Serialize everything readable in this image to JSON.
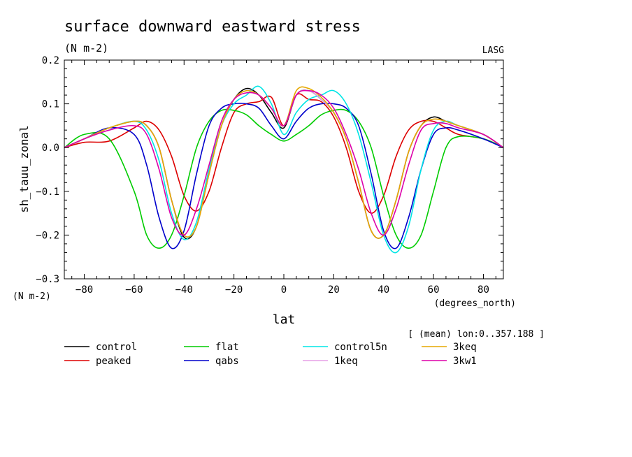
{
  "chart_data": {
    "type": "line",
    "title": "surface downward eastward stress",
    "units": "(N m-2)",
    "source": "LASG",
    "ylabel": "sh_tauu_zonal",
    "yunits": "(N m-2)",
    "xlabel": "lat",
    "xunits": "(degrees_north)",
    "note": "[ (mean) lon:0..357.188 ]",
    "xlim": [
      -88,
      88
    ],
    "ylim": [
      -0.3,
      0.2
    ],
    "x_ticks": [
      -80,
      -60,
      -40,
      -20,
      0,
      20,
      40,
      60,
      80
    ],
    "x_tick_labels": [
      "−80",
      "−60",
      "−40",
      "−20",
      "0",
      "20",
      "40",
      "60",
      "80"
    ],
    "y_ticks": [
      -0.3,
      -0.2,
      -0.1,
      0.0,
      0.1,
      0.2
    ],
    "y_tick_labels": [
      "−0.3",
      "−0.2",
      "−0.1",
      "0.0",
      "0.1",
      "0.2"
    ],
    "grid": false,
    "legend_position": "bottom",
    "x": [
      -88,
      -80,
      -70,
      -60,
      -55,
      -50,
      -45,
      -40,
      -35,
      -30,
      -25,
      -20,
      -15,
      -10,
      -5,
      0,
      5,
      10,
      15,
      20,
      25,
      30,
      35,
      40,
      45,
      50,
      55,
      60,
      65,
      70,
      80,
      88
    ],
    "series": [
      {
        "name": "control",
        "color": "#000000",
        "values": [
          0.0,
          0.02,
          0.045,
          0.06,
          0.05,
          0.0,
          -0.12,
          -0.205,
          -0.18,
          -0.06,
          0.05,
          0.11,
          0.135,
          0.12,
          0.08,
          0.045,
          0.12,
          0.13,
          0.11,
          0.08,
          0.02,
          -0.08,
          -0.19,
          -0.2,
          -0.12,
          -0.01,
          0.05,
          0.07,
          0.06,
          0.05,
          0.03,
          0.0
        ]
      },
      {
        "name": "peaked",
        "color": "#dd0000",
        "values": [
          0.0,
          0.012,
          0.015,
          0.045,
          0.06,
          0.04,
          -0.02,
          -0.11,
          -0.145,
          -0.1,
          0.0,
          0.08,
          0.1,
          0.105,
          0.115,
          0.05,
          0.12,
          0.11,
          0.105,
          0.07,
          0.0,
          -0.1,
          -0.15,
          -0.11,
          -0.02,
          0.04,
          0.06,
          0.06,
          0.045,
          0.03,
          0.02,
          0.0
        ]
      },
      {
        "name": "flat",
        "color": "#00cc00",
        "values": [
          0.0,
          0.03,
          0.02,
          -0.1,
          -0.2,
          -0.23,
          -0.2,
          -0.11,
          0.0,
          0.06,
          0.085,
          0.085,
          0.075,
          0.05,
          0.03,
          0.015,
          0.03,
          0.05,
          0.075,
          0.085,
          0.085,
          0.06,
          0.0,
          -0.11,
          -0.2,
          -0.23,
          -0.2,
          -0.1,
          0.0,
          0.025,
          0.02,
          0.0
        ]
      },
      {
        "name": "qabs",
        "color": "#0000cc",
        "values": [
          0.0,
          0.02,
          0.045,
          0.03,
          -0.04,
          -0.16,
          -0.23,
          -0.19,
          -0.06,
          0.05,
          0.09,
          0.1,
          0.1,
          0.09,
          0.05,
          0.02,
          0.06,
          0.09,
          0.1,
          0.1,
          0.09,
          0.05,
          -0.06,
          -0.19,
          -0.23,
          -0.16,
          -0.05,
          0.03,
          0.045,
          0.04,
          0.02,
          0.0
        ]
      },
      {
        "name": "control5n",
        "color": "#00e5e5",
        "values": [
          0.0,
          0.02,
          0.045,
          0.06,
          0.04,
          -0.03,
          -0.15,
          -0.21,
          -0.17,
          -0.05,
          0.05,
          0.1,
          0.12,
          0.14,
          0.1,
          0.03,
          0.08,
          0.11,
          0.12,
          0.13,
          0.1,
          0.03,
          -0.08,
          -0.2,
          -0.24,
          -0.18,
          -0.05,
          0.04,
          0.06,
          0.05,
          0.03,
          0.0
        ]
      },
      {
        "name": "1keq",
        "color": "#e6a0e6",
        "values": [
          0.0,
          0.02,
          0.045,
          0.06,
          0.05,
          0.0,
          -0.12,
          -0.2,
          -0.18,
          -0.06,
          0.05,
          0.11,
          0.13,
          0.12,
          0.09,
          0.05,
          0.12,
          0.13,
          0.11,
          0.08,
          0.02,
          -0.08,
          -0.19,
          -0.2,
          -0.12,
          -0.01,
          0.05,
          0.065,
          0.06,
          0.05,
          0.03,
          0.0
        ]
      },
      {
        "name": "3keq",
        "color": "#e6a800",
        "values": [
          0.0,
          0.02,
          0.045,
          0.06,
          0.05,
          0.0,
          -0.12,
          -0.2,
          -0.18,
          -0.06,
          0.05,
          0.11,
          0.13,
          0.12,
          0.09,
          0.05,
          0.13,
          0.135,
          0.115,
          0.08,
          0.02,
          -0.08,
          -0.19,
          -0.2,
          -0.12,
          -0.01,
          0.05,
          0.065,
          0.06,
          0.05,
          0.03,
          0.0
        ]
      },
      {
        "name": "3kw1",
        "color": "#dd00aa",
        "values": [
          0.0,
          0.02,
          0.04,
          0.05,
          0.03,
          -0.05,
          -0.16,
          -0.2,
          -0.14,
          -0.04,
          0.06,
          0.11,
          0.125,
          0.12,
          0.09,
          0.05,
          0.12,
          0.13,
          0.12,
          0.09,
          0.03,
          -0.05,
          -0.15,
          -0.2,
          -0.14,
          -0.04,
          0.04,
          0.055,
          0.055,
          0.045,
          0.03,
          0.0
        ]
      }
    ]
  }
}
